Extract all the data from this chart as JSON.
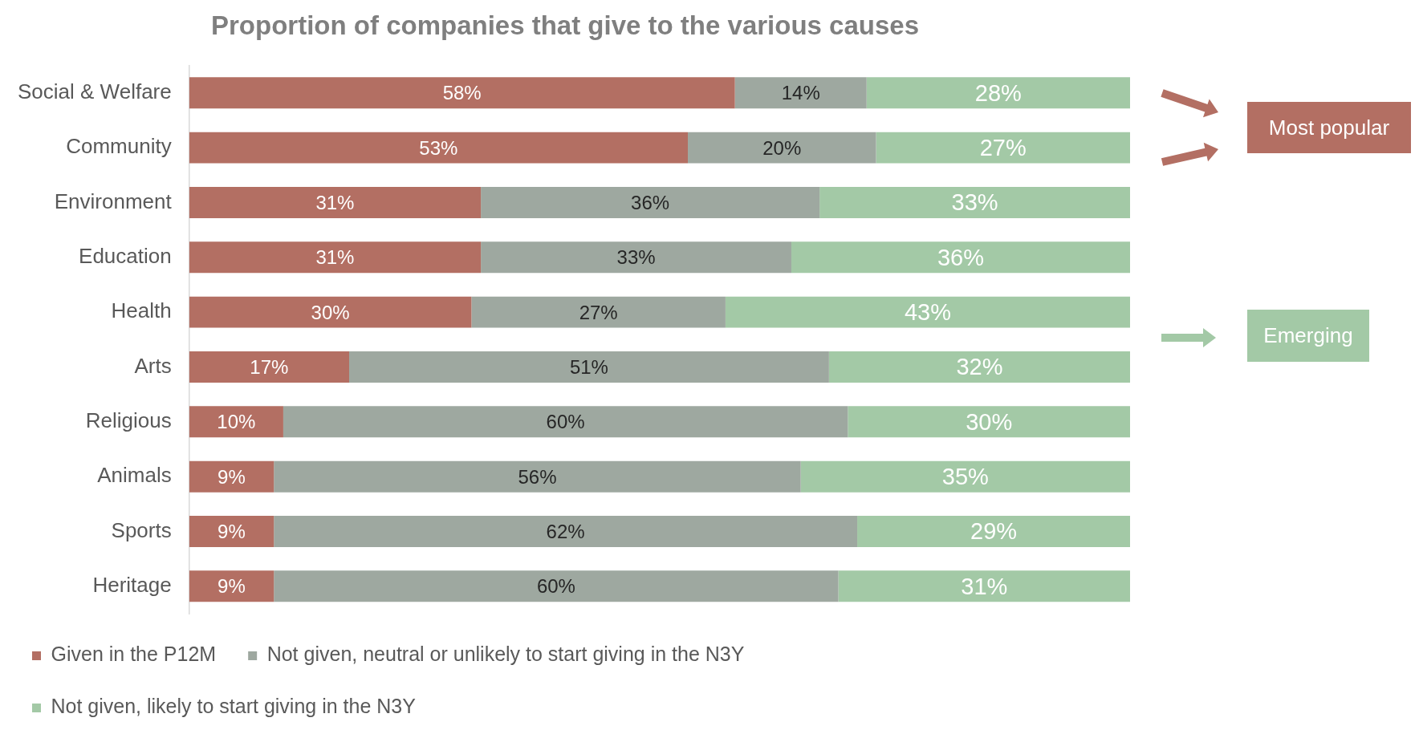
{
  "chart_data": {
    "type": "bar",
    "orientation": "horizontal",
    "stacked": true,
    "title": "Proportion of companies that give to the various causes",
    "categories": [
      "Social & Welfare",
      "Community",
      "Environment",
      "Education",
      "Health",
      "Arts",
      "Religious",
      "Animals",
      "Sports",
      "Heritage"
    ],
    "series": [
      {
        "name": "Given in the P12M",
        "color": "#b36f63",
        "values": [
          58,
          53,
          31,
          31,
          30,
          17,
          10,
          9,
          9,
          9
        ],
        "value_labels": [
          "58%",
          "53%",
          "31%",
          "31%",
          "30%",
          "17%",
          "10%",
          "9%",
          "9%",
          "9%"
        ]
      },
      {
        "name": "Not given, neutral or unlikely to start giving in the N3Y",
        "color": "#9ea8a0",
        "values": [
          14,
          20,
          36,
          33,
          27,
          51,
          60,
          56,
          62,
          60
        ],
        "value_labels": [
          "14%",
          "20%",
          "36%",
          "33%",
          "27%",
          "51%",
          "60%",
          "56%",
          "62%",
          "60%"
        ]
      },
      {
        "name": "Not given, likely to start giving in the N3Y",
        "color": "#a3c9a6",
        "values": [
          28,
          27,
          33,
          36,
          43,
          32,
          30,
          35,
          29,
          31
        ],
        "value_labels": [
          "28%",
          "27%",
          "33%",
          "36%",
          "43%",
          "32%",
          "30%",
          "35%",
          "29%",
          "31%"
        ]
      }
    ],
    "xlim": [
      0,
      100
    ],
    "tick_labels": "y",
    "grid": false,
    "legend": "bottom",
    "annotations": [
      "Most popular",
      "Emerging"
    ]
  }
}
